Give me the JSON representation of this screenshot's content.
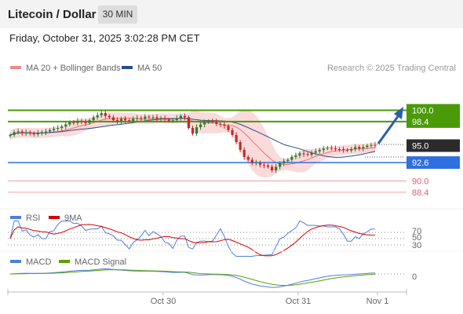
{
  "header": {
    "title": "Litecoin / Dollar",
    "interval": "30 MIN"
  },
  "datetime": "Friday, October 31, 2025 3:02:28 PM CET",
  "legend": {
    "ma_bollinger": "MA 20 + Bollinger Bands",
    "ma50": "MA 50",
    "copyright": "Research © 2025 Trading Central"
  },
  "colors": {
    "up_candle": "#2e7d32",
    "down_candle": "#c62828",
    "bollinger_fill": "#fadadb",
    "ma20": "#ef6f6f",
    "ma50": "#2a4d8f",
    "resistance": "#4a9a0a",
    "support": "#2f6fe0",
    "lower_target": "#e06060",
    "arrow": "#2a5fa8",
    "rsi": "#4f7de0",
    "rsi_9ma": "#d40000",
    "macd": "#4f7de0",
    "macd_signal": "#5aa000"
  },
  "chart_data": [
    {
      "type": "candlestick",
      "x_labels": [
        "Oct 30",
        "Oct 31",
        "Nov 1"
      ],
      "ylim": [
        86.5,
        102.5
      ],
      "levels": [
        {
          "label": "100.0",
          "value": 100.0,
          "kind": "resistance"
        },
        {
          "label": "98.4",
          "value": 98.4,
          "kind": "resistance"
        },
        {
          "label": "95.0",
          "value": 95.0,
          "kind": "last_price"
        },
        {
          "label": "92.6",
          "value": 92.6,
          "kind": "support"
        },
        {
          "label": "90.0",
          "value": 90.0,
          "kind": "target"
        },
        {
          "label": "88.4",
          "value": 88.4,
          "kind": "target"
        }
      ],
      "close": [
        96.5,
        96.9,
        97.0,
        96.8,
        96.9,
        96.7,
        96.6,
        96.8,
        96.9,
        97.0,
        97.2,
        97.4,
        97.5,
        97.7,
        98.0,
        98.3,
        98.2,
        98.5,
        98.4,
        98.2,
        98.6,
        99.0,
        99.3,
        99.6,
        99.2,
        99.0,
        98.6,
        98.4,
        98.8,
        98.6,
        98.5,
        98.8,
        98.9,
        98.8,
        99.1,
        99.0,
        99.0,
        98.8,
        98.9,
        98.7,
        98.5,
        98.6,
        98.9,
        99.2,
        99.0,
        97.5,
        96.7,
        97.6,
        98.0,
        98.3,
        98.5,
        98.4,
        98.1,
        98.0,
        97.8,
        97.2,
        96.5,
        95.5,
        94.4,
        93.4,
        93.0,
        92.5,
        92.6,
        92.3,
        92.2,
        92.0,
        91.5,
        92.0,
        92.5,
        92.8,
        93.0,
        93.4,
        93.6,
        93.9,
        93.8,
        93.7,
        94.0,
        94.2,
        94.4,
        94.6,
        94.7,
        94.6,
        94.5,
        94.5,
        94.4,
        94.3,
        94.5,
        94.8,
        94.6,
        94.8,
        95.0,
        95.1,
        95.0
      ]
    },
    {
      "type": "line",
      "title": "RSI",
      "series": [
        {
          "name": "RSI"
        },
        {
          "name": "9MA"
        }
      ],
      "y_ticks": [
        70,
        50,
        30
      ]
    },
    {
      "type": "line",
      "title": "MACD",
      "series": [
        {
          "name": "MACD"
        },
        {
          "name": "MACD Signal"
        }
      ],
      "y_ticks": [
        0
      ]
    }
  ]
}
